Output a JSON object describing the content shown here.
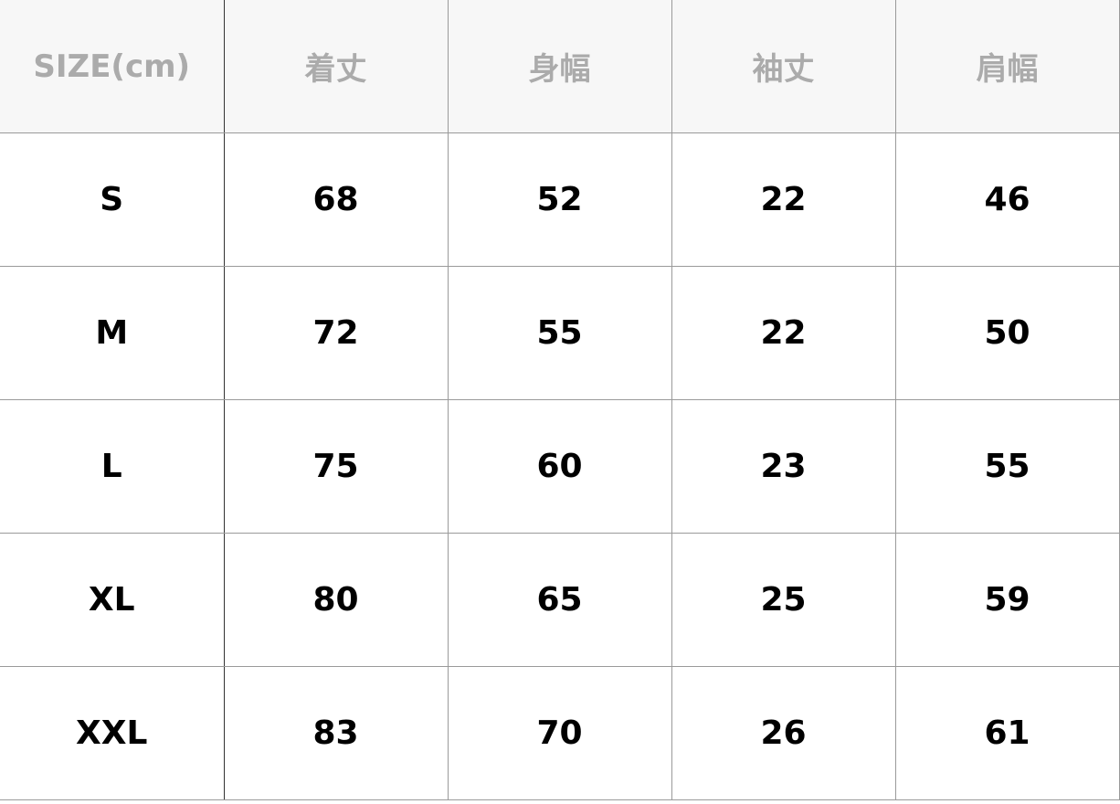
{
  "table": {
    "headers": [
      "SIZE(cm)",
      "着丈",
      "身幅",
      "袖丈",
      "肩幅"
    ],
    "rows": [
      [
        "S",
        "68",
        "52",
        "22",
        "46"
      ],
      [
        "M",
        "72",
        "55",
        "22",
        "50"
      ],
      [
        "L",
        "75",
        "60",
        "23",
        "55"
      ],
      [
        "XL",
        "80",
        "65",
        "25",
        "59"
      ],
      [
        "XXL",
        "83",
        "70",
        "26",
        "61"
      ]
    ]
  },
  "colors": {
    "header_bg": "#f7f7f7",
    "header_text": "#ababab",
    "border": "#9a9a9a",
    "first_col_divider": "#333333"
  }
}
